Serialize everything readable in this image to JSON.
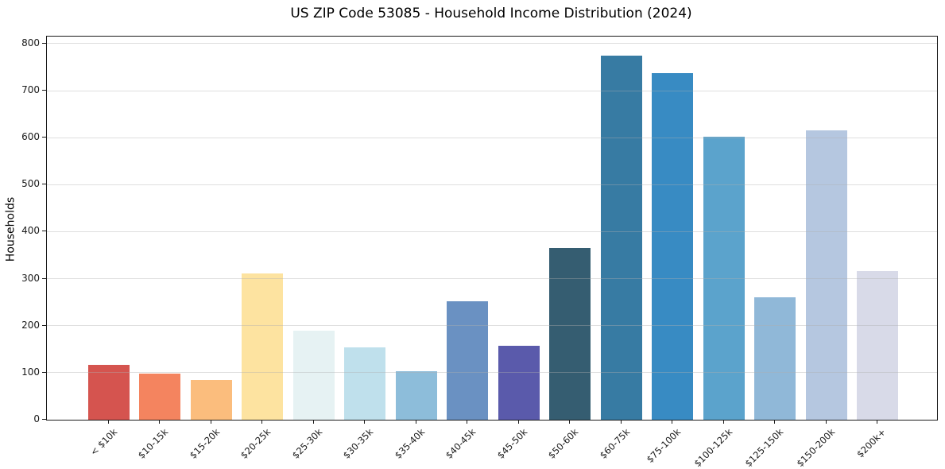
{
  "chart_data": {
    "type": "bar",
    "title": "US ZIP Code 53085 - Household Income Distribution (2024)",
    "xlabel": "",
    "ylabel": "Households",
    "categories": [
      "< $10k",
      "$10-15k",
      "$15-20k",
      "$20-25k",
      "$25-30k",
      "$30-35k",
      "$35-40k",
      "$40-45k",
      "$45-50k",
      "$50-60k",
      "$60-75k",
      "$75-100k",
      "$100-125k",
      "$125-150k",
      "$150-200k",
      "$200k+"
    ],
    "values": [
      117,
      98,
      84,
      311,
      190,
      154,
      103,
      252,
      158,
      365,
      775,
      737,
      602,
      260,
      615,
      316
    ],
    "bar_colors": [
      "#d5544f",
      "#f4845f",
      "#fbbd7d",
      "#fde3a0",
      "#e6f2f3",
      "#bfe0ec",
      "#8dbdda",
      "#6a91c2",
      "#5a5aab",
      "#355d71",
      "#377ba3",
      "#388bc3",
      "#5ba3cc",
      "#90b8d8",
      "#b5c7e0",
      "#d8dae8"
    ],
    "yticks": [
      0,
      100,
      200,
      300,
      400,
      500,
      600,
      700,
      800
    ],
    "ylim": [
      0,
      815
    ],
    "grid": "horizontal-above-bars",
    "grid_color": "#b0b0b0",
    "axis_color": "#1a1a1a",
    "background_color": "#ffffff",
    "legend": "none"
  }
}
